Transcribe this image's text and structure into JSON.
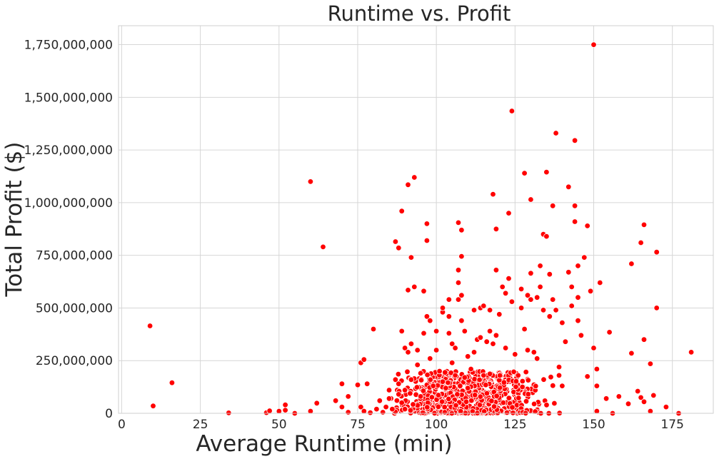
{
  "chart_data": {
    "type": "scatter",
    "title": "Runtime vs. Profit",
    "xlabel": "Average Runtime (min)",
    "ylabel": "Total Profit ($)",
    "xlim": [
      -1,
      188
    ],
    "ylim": [
      0,
      1840000000
    ],
    "x_ticks": [
      0,
      25,
      50,
      75,
      100,
      125,
      150,
      175
    ],
    "x_tick_labels": [
      "0",
      "25",
      "50",
      "75",
      "100",
      "125",
      "150",
      "175"
    ],
    "y_ticks": [
      0,
      250000000,
      500000000,
      750000000,
      1000000000,
      1250000000,
      1500000000,
      1750000000
    ],
    "y_tick_labels": [
      "0",
      "250,000,000",
      "500,000,000",
      "750,000,000",
      "1,000,000,000",
      "1,250,000,000",
      "1,500,000,000",
      "1,750,000,000"
    ],
    "grid": true,
    "marker_color": "#ff0000",
    "marker_edge": "#ffffff",
    "points": [
      [
        9,
        415000000
      ],
      [
        10,
        35000000
      ],
      [
        16,
        145000000
      ],
      [
        34,
        2000000
      ],
      [
        46,
        3000000
      ],
      [
        47,
        12000000
      ],
      [
        50,
        10000000
      ],
      [
        52,
        40000000
      ],
      [
        52,
        15000000
      ],
      [
        55,
        0
      ],
      [
        60,
        1100000000
      ],
      [
        60,
        10000000
      ],
      [
        62,
        48000000
      ],
      [
        64,
        790000000
      ],
      [
        68,
        60000000
      ],
      [
        70,
        140000000
      ],
      [
        70,
        30000000
      ],
      [
        72,
        5000000
      ],
      [
        72,
        80000000
      ],
      [
        75,
        135000000
      ],
      [
        76,
        240000000
      ],
      [
        76,
        30000000
      ],
      [
        77,
        255000000
      ],
      [
        77,
        10000000
      ],
      [
        78,
        140000000
      ],
      [
        79,
        3000000
      ],
      [
        80,
        400000000
      ],
      [
        81,
        20000000
      ],
      [
        82,
        60000000
      ],
      [
        83,
        5000000
      ],
      [
        84,
        30000000
      ],
      [
        85,
        110000000
      ],
      [
        85,
        70000000
      ],
      [
        86,
        20000000
      ],
      [
        87,
        815000000
      ],
      [
        87,
        160000000
      ],
      [
        88,
        785000000
      ],
      [
        88,
        140000000
      ],
      [
        88,
        90000000
      ],
      [
        89,
        960000000
      ],
      [
        89,
        390000000
      ],
      [
        89,
        50000000
      ],
      [
        90,
        310000000
      ],
      [
        90,
        110000000
      ],
      [
        90,
        20000000
      ],
      [
        91,
        1085000000
      ],
      [
        91,
        585000000
      ],
      [
        91,
        290000000
      ],
      [
        92,
        740000000
      ],
      [
        92,
        330000000
      ],
      [
        92,
        160000000
      ],
      [
        93,
        1120000000
      ],
      [
        93,
        600000000
      ],
      [
        94,
        300000000
      ],
      [
        94,
        230000000
      ],
      [
        95,
        190000000
      ],
      [
        95,
        80000000
      ],
      [
        96,
        380000000
      ],
      [
        96,
        580000000
      ],
      [
        97,
        820000000
      ],
      [
        97,
        460000000
      ],
      [
        97,
        900000000
      ],
      [
        98,
        440000000
      ],
      [
        98,
        260000000
      ],
      [
        99,
        130000000
      ],
      [
        100,
        390000000
      ],
      [
        100,
        300000000
      ],
      [
        101,
        200000000
      ],
      [
        102,
        480000000
      ],
      [
        102,
        500000000
      ],
      [
        102,
        150000000
      ],
      [
        103,
        120000000
      ],
      [
        104,
        540000000
      ],
      [
        104,
        380000000
      ],
      [
        104,
        460000000
      ],
      [
        105,
        330000000
      ],
      [
        105,
        240000000
      ],
      [
        106,
        310000000
      ],
      [
        106,
        180000000
      ],
      [
        107,
        905000000
      ],
      [
        107,
        680000000
      ],
      [
        107,
        620000000
      ],
      [
        107,
        540000000
      ],
      [
        108,
        870000000
      ],
      [
        108,
        745000000
      ],
      [
        108,
        560000000
      ],
      [
        108,
        440000000
      ],
      [
        109,
        390000000
      ],
      [
        109,
        170000000
      ],
      [
        110,
        270000000
      ],
      [
        110,
        120000000
      ],
      [
        111,
        210000000
      ],
      [
        112,
        490000000
      ],
      [
        112,
        290000000
      ],
      [
        113,
        350000000
      ],
      [
        114,
        360000000
      ],
      [
        114,
        500000000
      ],
      [
        115,
        510000000
      ],
      [
        115,
        180000000
      ],
      [
        116,
        340000000
      ],
      [
        117,
        390000000
      ],
      [
        117,
        490000000
      ],
      [
        118,
        1040000000
      ],
      [
        118,
        330000000
      ],
      [
        119,
        875000000
      ],
      [
        119,
        680000000
      ],
      [
        119,
        370000000
      ],
      [
        120,
        470000000
      ],
      [
        121,
        600000000
      ],
      [
        122,
        310000000
      ],
      [
        122,
        570000000
      ],
      [
        123,
        950000000
      ],
      [
        123,
        640000000
      ],
      [
        124,
        1435000000
      ],
      [
        124,
        530000000
      ],
      [
        125,
        280000000
      ],
      [
        126,
        180000000
      ],
      [
        127,
        500000000
      ],
      [
        127,
        590000000
      ],
      [
        128,
        1140000000
      ],
      [
        128,
        400000000
      ],
      [
        129,
        560000000
      ],
      [
        129,
        300000000
      ],
      [
        130,
        1015000000
      ],
      [
        130,
        665000000
      ],
      [
        130,
        540000000
      ],
      [
        131,
        290000000
      ],
      [
        132,
        550000000
      ],
      [
        132,
        260000000
      ],
      [
        133,
        700000000
      ],
      [
        133,
        600000000
      ],
      [
        134,
        850000000
      ],
      [
        134,
        490000000
      ],
      [
        135,
        1145000000
      ],
      [
        135,
        840000000
      ],
      [
        136,
        660000000
      ],
      [
        136,
        460000000
      ],
      [
        137,
        985000000
      ],
      [
        137,
        540000000
      ],
      [
        138,
        1330000000
      ],
      [
        138,
        490000000
      ],
      [
        139,
        220000000
      ],
      [
        139,
        180000000
      ],
      [
        140,
        430000000
      ],
      [
        140,
        130000000
      ],
      [
        141,
        340000000
      ],
      [
        142,
        1075000000
      ],
      [
        142,
        670000000
      ],
      [
        143,
        600000000
      ],
      [
        143,
        510000000
      ],
      [
        144,
        1295000000
      ],
      [
        144,
        985000000
      ],
      [
        144,
        910000000
      ],
      [
        145,
        700000000
      ],
      [
        145,
        550000000
      ],
      [
        145,
        440000000
      ],
      [
        146,
        370000000
      ],
      [
        147,
        740000000
      ],
      [
        148,
        890000000
      ],
      [
        148,
        175000000
      ],
      [
        149,
        580000000
      ],
      [
        150,
        1750000000
      ],
      [
        150,
        310000000
      ],
      [
        151,
        210000000
      ],
      [
        151,
        130000000
      ],
      [
        151,
        10000000
      ],
      [
        152,
        620000000
      ],
      [
        154,
        70000000
      ],
      [
        155,
        385000000
      ],
      [
        156,
        0
      ],
      [
        158,
        80000000
      ],
      [
        161,
        45000000
      ],
      [
        162,
        710000000
      ],
      [
        162,
        285000000
      ],
      [
        164,
        105000000
      ],
      [
        165,
        810000000
      ],
      [
        165,
        75000000
      ],
      [
        166,
        895000000
      ],
      [
        166,
        350000000
      ],
      [
        166,
        55000000
      ],
      [
        168,
        235000000
      ],
      [
        168,
        10000000
      ],
      [
        169,
        85000000
      ],
      [
        170,
        765000000
      ],
      [
        170,
        500000000
      ],
      [
        173,
        30000000
      ],
      [
        177,
        0
      ],
      [
        181,
        290000000
      ]
    ],
    "dense_cluster": {
      "x_range": [
        80,
        142
      ],
      "y_max": 200000000,
      "count": 750
    }
  }
}
